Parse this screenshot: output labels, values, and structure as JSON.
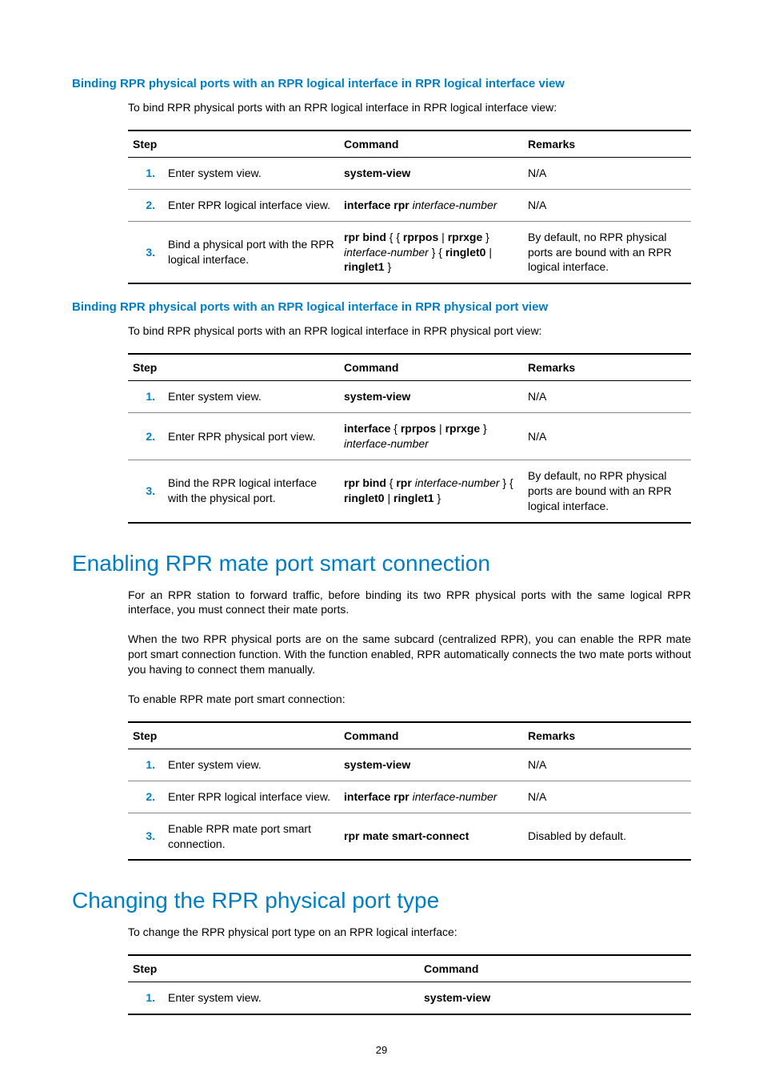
{
  "section1": {
    "heading": "Binding RPR physical ports with an RPR logical interface in RPR logical interface view",
    "intro": "To bind RPR physical ports with an RPR logical interface in RPR logical interface view:",
    "thead": {
      "step": "Step",
      "command": "Command",
      "remarks": "Remarks"
    },
    "rows": [
      {
        "num": "1.",
        "step": "Enter system view.",
        "cmd_parts": [
          {
            "t": "system-view",
            "b": true
          }
        ],
        "remarks": "N/A"
      },
      {
        "num": "2.",
        "step": "Enter RPR logical interface view.",
        "cmd_parts": [
          {
            "t": "interface rpr ",
            "b": true
          },
          {
            "t": "interface-number",
            "i": true
          }
        ],
        "remarks": "N/A"
      },
      {
        "num": "3.",
        "step": "Bind a physical port with the RPR logical interface.",
        "cmd_parts": [
          {
            "t": "rpr bind",
            "b": true
          },
          {
            "t": " { { "
          },
          {
            "t": "rprpos",
            "b": true
          },
          {
            "t": " | "
          },
          {
            "t": "rprxge",
            "b": true
          },
          {
            "t": " } "
          },
          {
            "t": "interface-number",
            "i": true
          },
          {
            "t": " } { "
          },
          {
            "t": "ringlet0",
            "b": true
          },
          {
            "t": " | "
          },
          {
            "t": "ringlet1",
            "b": true
          },
          {
            "t": " }"
          }
        ],
        "remarks": "By default, no RPR physical ports are bound with an RPR logical interface."
      }
    ]
  },
  "section2": {
    "heading": "Binding RPR physical ports with an RPR logical interface in RPR physical port view",
    "intro": "To bind RPR physical ports with an RPR logical interface in RPR physical port view:",
    "thead": {
      "step": "Step",
      "command": "Command",
      "remarks": "Remarks"
    },
    "rows": [
      {
        "num": "1.",
        "step": "Enter system view.",
        "cmd_parts": [
          {
            "t": "system-view",
            "b": true
          }
        ],
        "remarks": "N/A"
      },
      {
        "num": "2.",
        "step": "Enter RPR physical port view.",
        "cmd_parts": [
          {
            "t": "interface",
            "b": true
          },
          {
            "t": " { "
          },
          {
            "t": "rprpos",
            "b": true
          },
          {
            "t": " | "
          },
          {
            "t": "rprxge",
            "b": true
          },
          {
            "t": " } "
          },
          {
            "t": "interface-number",
            "i": true
          }
        ],
        "remarks": "N/A"
      },
      {
        "num": "3.",
        "step": "Bind the RPR logical interface with the physical port.",
        "cmd_parts": [
          {
            "t": "rpr bind",
            "b": true
          },
          {
            "t": " { "
          },
          {
            "t": "rpr",
            "b": true
          },
          {
            "t": " "
          },
          {
            "t": "interface-number",
            "i": true
          },
          {
            "t": " } { "
          },
          {
            "t": "ringlet0",
            "b": true
          },
          {
            "t": " | "
          },
          {
            "t": "ringlet1",
            "b": true
          },
          {
            "t": " }"
          }
        ],
        "remarks": "By default, no RPR physical ports are bound with an RPR logical interface."
      }
    ]
  },
  "section3": {
    "heading": "Enabling RPR mate port smart connection",
    "para1": "For an RPR station to forward traffic, before binding its two RPR physical ports with the same logical RPR interface, you must connect their mate ports.",
    "para2": "When the two RPR physical ports are on the same subcard (centralized RPR), you can enable the RPR mate port smart connection function. With the function enabled, RPR automatically connects the two mate ports without you having to connect them manually.",
    "para3": "To enable RPR mate port smart connection:",
    "thead": {
      "step": "Step",
      "command": "Command",
      "remarks": "Remarks"
    },
    "rows": [
      {
        "num": "1.",
        "step": "Enter system view.",
        "cmd_parts": [
          {
            "t": "system-view",
            "b": true
          }
        ],
        "remarks": "N/A"
      },
      {
        "num": "2.",
        "step": "Enter RPR logical interface view.",
        "cmd_parts": [
          {
            "t": "interface rpr ",
            "b": true
          },
          {
            "t": "interface-number",
            "i": true
          }
        ],
        "remarks": "N/A"
      },
      {
        "num": "3.",
        "step": "Enable RPR mate port smart connection.",
        "cmd_parts": [
          {
            "t": "rpr mate smart-connect",
            "b": true
          }
        ],
        "remarks": "Disabled by default."
      }
    ]
  },
  "section4": {
    "heading": "Changing the RPR physical port type",
    "intro": "To change the RPR physical port type on an RPR logical interface:",
    "thead": {
      "step": "Step",
      "command": "Command"
    },
    "rows": [
      {
        "num": "1.",
        "step": "Enter system view.",
        "cmd_parts": [
          {
            "t": "system-view",
            "b": true
          }
        ]
      }
    ]
  },
  "pagenum": "29"
}
